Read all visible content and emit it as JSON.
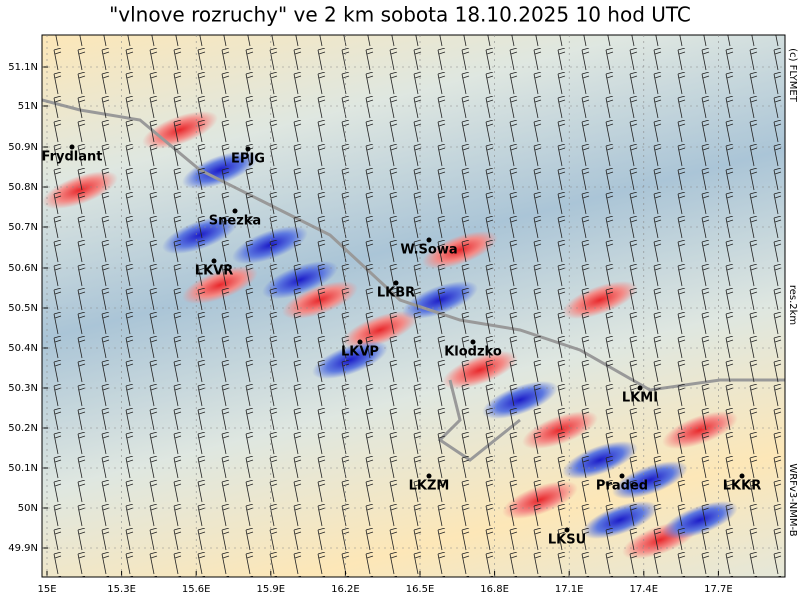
{
  "title": "\"vlnove rozruchy\" ve 2 km  sobota 18.10.2025 10 hod UTC",
  "lat_ticks": [
    "51.1N",
    "51N",
    "50.9N",
    "50.8N",
    "50.7N",
    "50.6N",
    "50.5N",
    "50.4N",
    "50.3N",
    "50.2N",
    "50.1N",
    "50N",
    "49.9N"
  ],
  "lon_ticks": [
    "15E",
    "15.3E",
    "15.6E",
    "15.9E",
    "16.2E",
    "16.5E",
    "16.8E",
    "17.1E",
    "17.4E",
    "17.7E"
  ],
  "places": [
    "Frydlant",
    "EPJG",
    "Snezka",
    "W.Sowa",
    "LKVR",
    "LKBR",
    "LKVP",
    "Klodzko",
    "LKMI",
    "LKZM",
    "Praded",
    "LKKR",
    "LKSU"
  ],
  "side_labels": [
    "(c) FLYMET",
    "res.2km",
    "WRFv3-NMM-B"
  ]
}
